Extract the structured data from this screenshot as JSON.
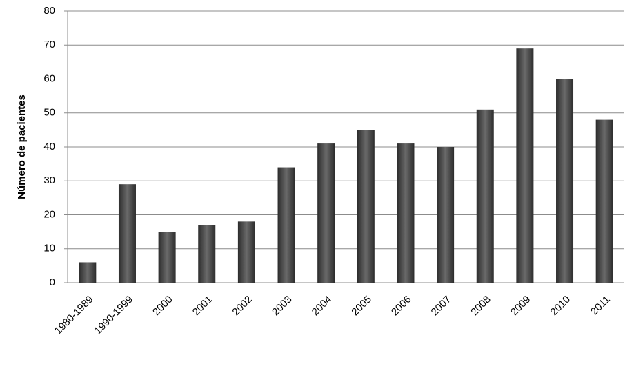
{
  "chart_data": {
    "type": "bar",
    "y_label": "Número de pacientes",
    "categories": [
      "1980-1989",
      "1990-1999",
      "2000",
      "2001",
      "2002",
      "2003",
      "2004",
      "2005",
      "2006",
      "2007",
      "2008",
      "2009",
      "2010",
      "2011"
    ],
    "values": [
      6,
      29,
      15,
      17,
      18,
      34,
      41,
      45,
      41,
      40,
      51,
      69,
      60,
      48
    ],
    "color": "#6a6a6a",
    "ylim": [
      0,
      80
    ],
    "yticks": [
      0,
      10,
      20,
      30,
      40,
      50,
      60,
      70,
      80
    ],
    "grid": true
  }
}
